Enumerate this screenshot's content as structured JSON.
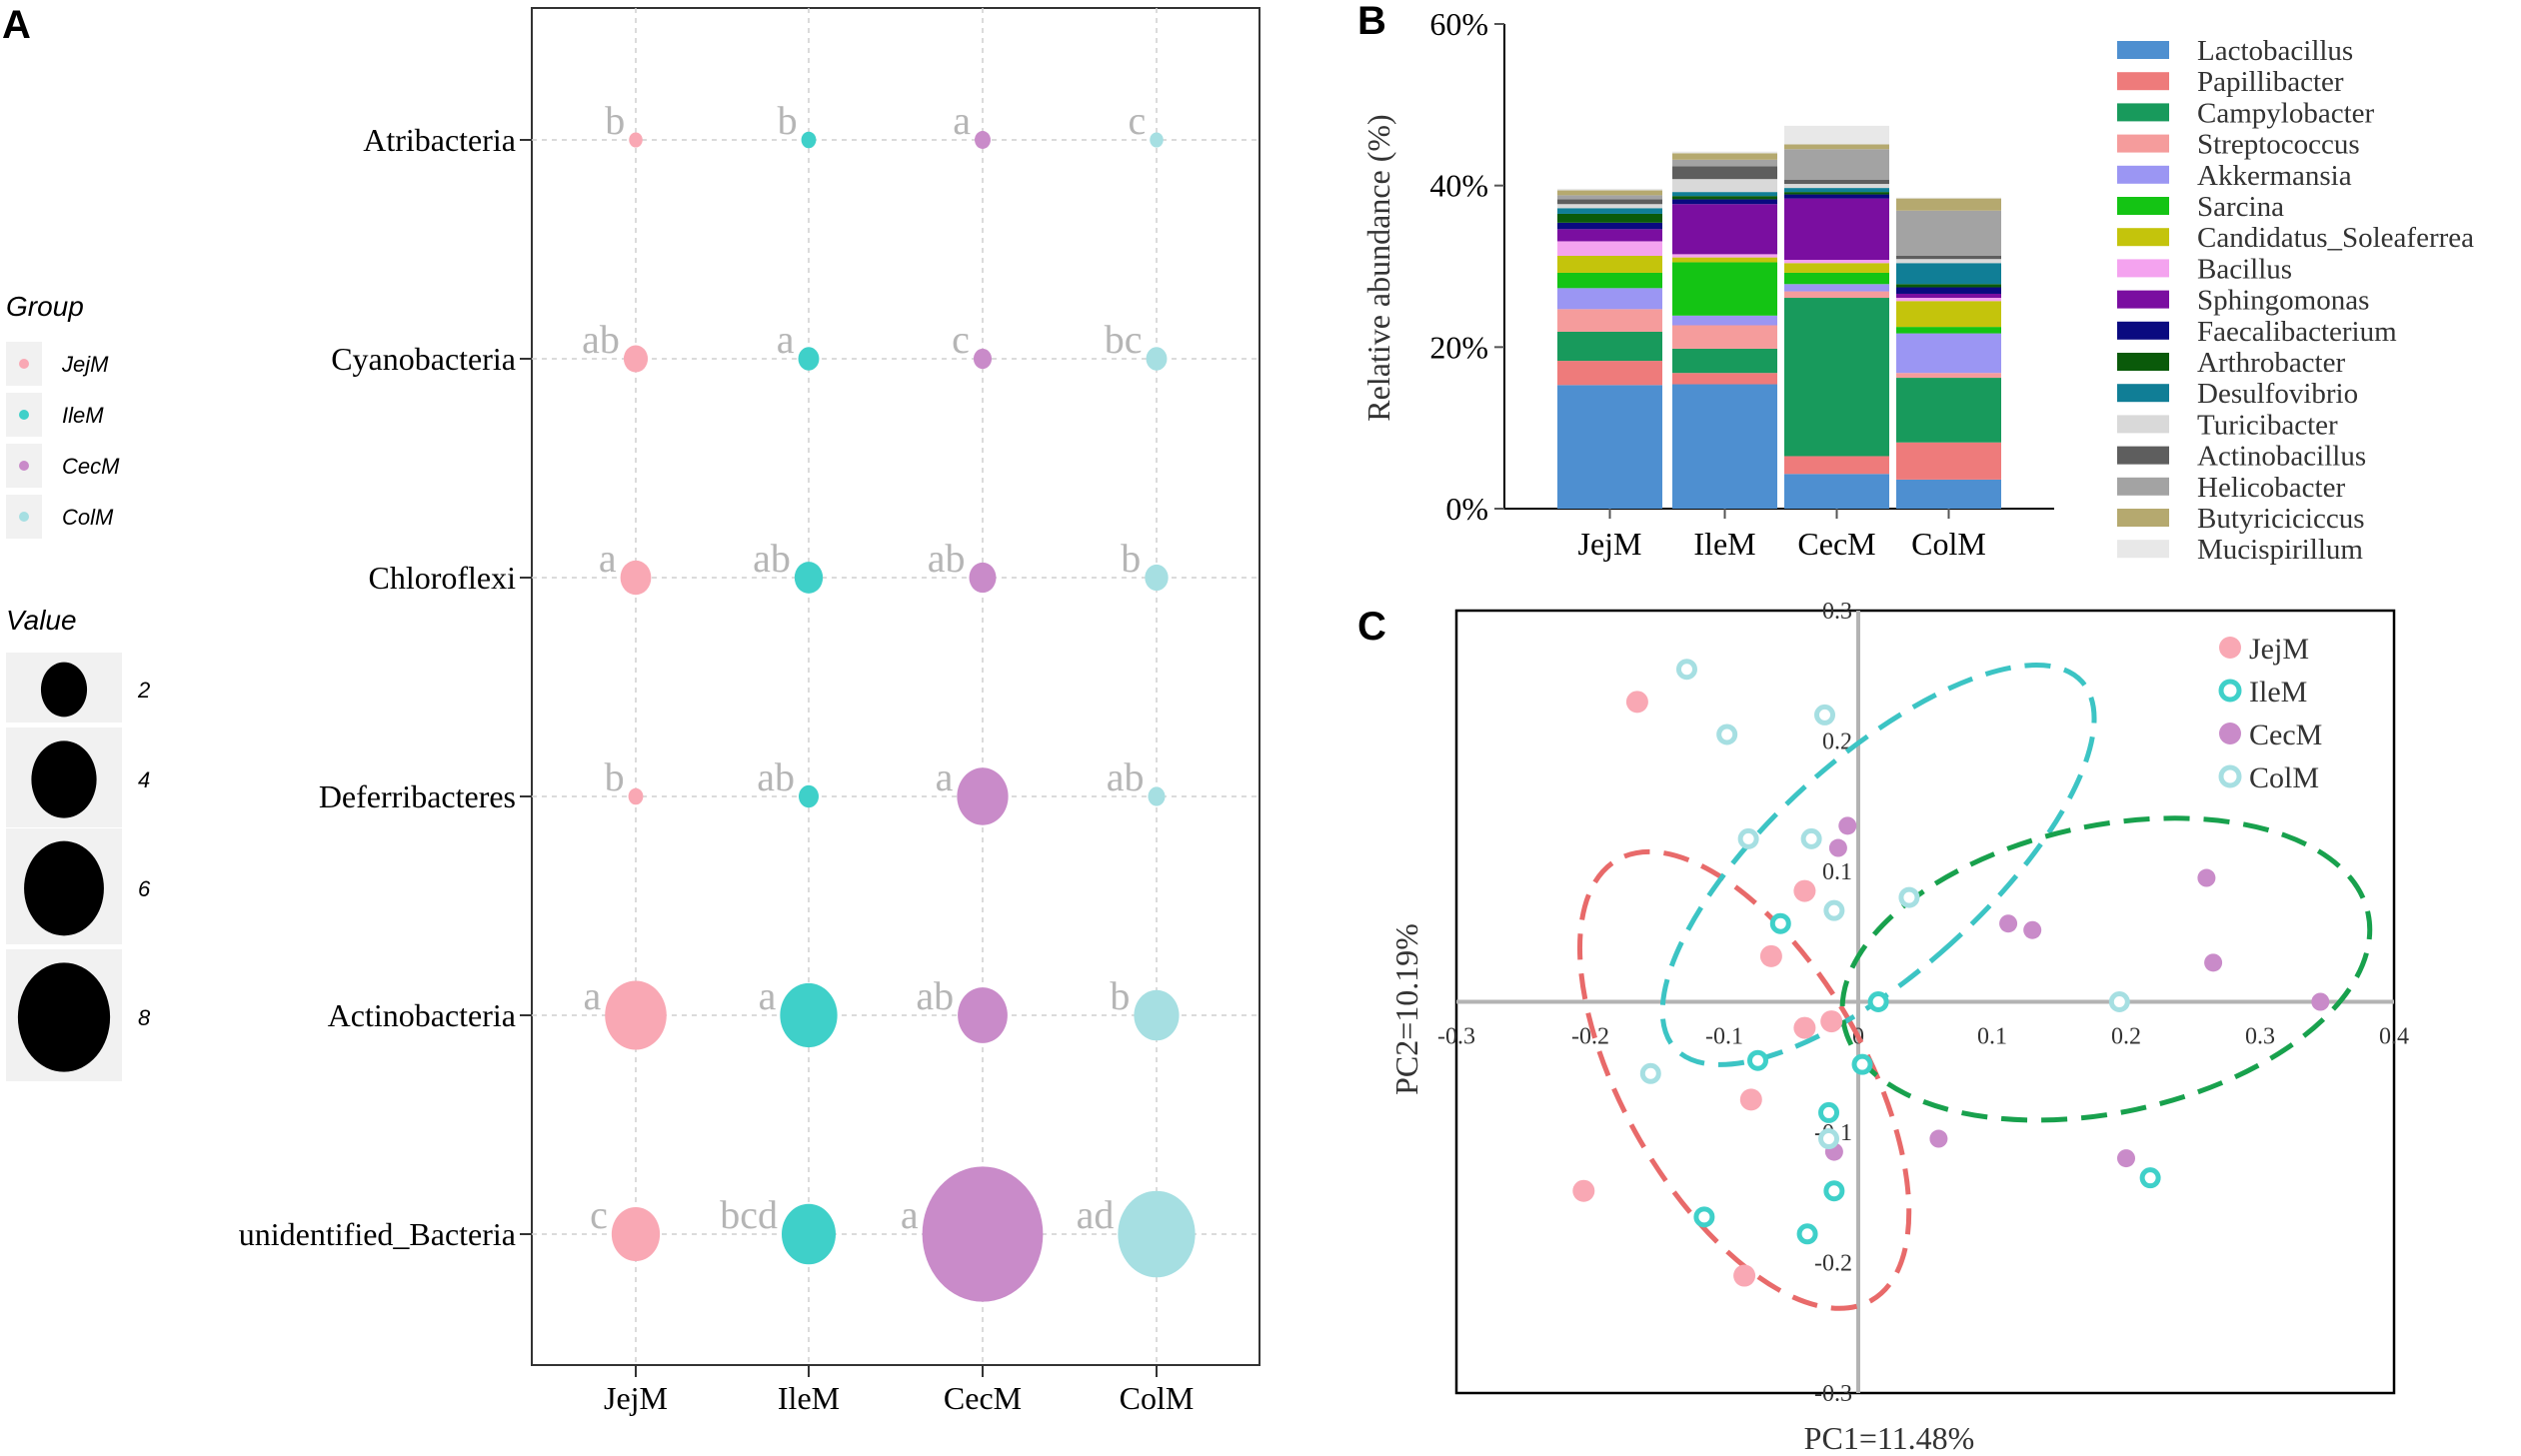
{
  "panels": {
    "a": "A",
    "b": "B",
    "c": "C"
  },
  "colors": {
    "JejM": "#f9a8b4",
    "IleM": "#3fd0c9",
    "CecM": "#c98bc9",
    "ColM": "#a6dfe2"
  },
  "ellipse_colors": {
    "JejM": "#e86a6a",
    "IleM": "#3cc4c4",
    "CecM": "#18a14d"
  },
  "chart_data": [
    {
      "id": "A",
      "type": "scatter",
      "subtype": "bubble",
      "groups": [
        "JejM",
        "IleM",
        "CecM",
        "ColM"
      ],
      "phyla": [
        "Atribacteria",
        "Cyanobacteria",
        "Chloroflexi",
        "Deferribacteres",
        "Actinobacteria",
        "unidentified_Bacteria"
      ],
      "values": [
        [
          0.25,
          0.3,
          0.35,
          0.25
        ],
        [
          0.8,
          0.6,
          0.45,
          0.6
        ],
        [
          1.3,
          1.1,
          1.0,
          0.75
        ],
        [
          0.3,
          0.55,
          3.6,
          0.4
        ],
        [
          5.2,
          4.5,
          3.4,
          2.8
        ],
        [
          3.2,
          4.0,
          20.0,
          8.2
        ]
      ],
      "letters": [
        [
          "b",
          "b",
          "a",
          "c"
        ],
        [
          "ab",
          "a",
          "c",
          "bc"
        ],
        [
          "a",
          "ab",
          "ab",
          "b"
        ],
        [
          "b",
          "ab",
          "a",
          "ab"
        ],
        [
          "a",
          "a",
          "ab",
          "b"
        ],
        [
          "c",
          "bcd",
          "a",
          "ad"
        ]
      ],
      "legend": {
        "group_title": "Group",
        "value_title": "Value",
        "value_breaks": [
          2,
          4,
          6,
          8
        ]
      }
    },
    {
      "id": "B",
      "type": "bar",
      "stacked": true,
      "categories": [
        "JejM",
        "IleM",
        "CecM",
        "ColM"
      ],
      "ylabel": "Relative abundance (%)",
      "ylim": [
        0,
        60
      ],
      "yticks": [
        "0%",
        "20%",
        "40%",
        "60%"
      ],
      "series": [
        {
          "name": "Lactobacillus",
          "color": "#4e8fd0",
          "values": [
            15.3,
            15.4,
            4.3,
            3.6
          ]
        },
        {
          "name": "Papillibacter",
          "color": "#ee7b7b",
          "values": [
            3.0,
            1.4,
            2.2,
            4.6
          ]
        },
        {
          "name": "Campylobacter",
          "color": "#189a5c",
          "values": [
            3.6,
            3.0,
            19.6,
            8.0
          ]
        },
        {
          "name": "Streptococcus",
          "color": "#f59c9c",
          "values": [
            2.8,
            2.9,
            0.8,
            0.6
          ]
        },
        {
          "name": "Akkermansia",
          "color": "#9b96f3",
          "values": [
            2.6,
            1.2,
            0.9,
            4.9
          ]
        },
        {
          "name": "Sarcina",
          "color": "#14c414",
          "values": [
            1.9,
            6.6,
            1.4,
            0.8
          ]
        },
        {
          "name": "Candidatus_Soleaferrea",
          "color": "#c4c40c",
          "values": [
            2.1,
            0.6,
            1.2,
            3.2
          ]
        },
        {
          "name": "Bacillus",
          "color": "#f4a3ef",
          "values": [
            1.8,
            0.4,
            0.4,
            0.4
          ]
        },
        {
          "name": "Sphingomonas",
          "color": "#7a0ea0",
          "values": [
            1.5,
            6.2,
            7.6,
            0.5
          ]
        },
        {
          "name": "Faecalibacterium",
          "color": "#0a0a80",
          "values": [
            0.8,
            0.6,
            0.5,
            0.8
          ]
        },
        {
          "name": "Arthrobacter",
          "color": "#0a5a0a",
          "values": [
            1.1,
            0.4,
            0.3,
            0.4
          ]
        },
        {
          "name": "Desulfovibrio",
          "color": "#107e96",
          "values": [
            0.7,
            0.5,
            0.5,
            2.6
          ]
        },
        {
          "name": "Turicibacter",
          "color": "#d9d9d9",
          "values": [
            0.5,
            1.6,
            0.5,
            0.5
          ]
        },
        {
          "name": "Actinobacillus",
          "color": "#5e5e5e",
          "values": [
            0.6,
            1.6,
            0.5,
            0.4
          ]
        },
        {
          "name": "Helicobacter",
          "color": "#a3a3a3",
          "values": [
            0.5,
            0.8,
            3.8,
            5.6
          ]
        },
        {
          "name": "Butyriciciccus",
          "color": "#b5a96f",
          "values": [
            0.6,
            0.8,
            0.6,
            1.5
          ]
        },
        {
          "name": "Mucispirillum",
          "color": "#e8e8e8",
          "values": [
            0.2,
            0.2,
            2.3,
            0.1
          ]
        }
      ]
    },
    {
      "id": "C",
      "type": "scatter",
      "xlabel": "PC1=11.48%",
      "ylabel": "PC2=10.19%",
      "xlim": [
        -0.3,
        0.4
      ],
      "ylim": [
        -0.3,
        0.3
      ],
      "xticks": [
        "-0.3",
        "-0.2",
        "-0.1",
        "0",
        "0.1",
        "0.2",
        "0.3",
        "0.4"
      ],
      "yticks": [
        "0.3",
        "0.2",
        "0.1",
        "-0.1",
        "-0.2",
        "-0.3"
      ],
      "legend": [
        "JejM",
        "IleM",
        "CecM",
        "ColM"
      ],
      "series": [
        {
          "name": "JejM",
          "marker": "filled",
          "points": [
            [
              -0.165,
              0.23
            ],
            [
              -0.04,
              0.085
            ],
            [
              -0.065,
              0.035
            ],
            [
              -0.04,
              -0.02
            ],
            [
              -0.02,
              -0.015
            ],
            [
              -0.08,
              -0.075
            ],
            [
              -0.205,
              -0.145
            ],
            [
              -0.085,
              -0.21
            ]
          ]
        },
        {
          "name": "IleM",
          "marker": "ring",
          "points": [
            [
              -0.058,
              0.06
            ],
            [
              0.015,
              0.0
            ],
            [
              -0.075,
              -0.045
            ],
            [
              0.003,
              -0.048
            ],
            [
              -0.022,
              -0.085
            ],
            [
              -0.018,
              -0.145
            ],
            [
              -0.115,
              -0.165
            ],
            [
              -0.038,
              -0.178
            ],
            [
              0.218,
              -0.135
            ]
          ]
        },
        {
          "name": "CecM",
          "marker": "filled",
          "points": [
            [
              -0.008,
              0.135
            ],
            [
              -0.015,
              0.118
            ],
            [
              0.112,
              0.06
            ],
            [
              0.13,
              0.055
            ],
            [
              0.26,
              0.095
            ],
            [
              0.265,
              0.03
            ],
            [
              0.345,
              0.0
            ],
            [
              -0.018,
              -0.115
            ],
            [
              0.06,
              -0.105
            ],
            [
              0.2,
              -0.12
            ]
          ]
        },
        {
          "name": "ColM",
          "marker": "ring",
          "points": [
            [
              -0.128,
              0.255
            ],
            [
              -0.098,
              0.205
            ],
            [
              -0.025,
              0.22
            ],
            [
              -0.082,
              0.125
            ],
            [
              -0.035,
              0.125
            ],
            [
              -0.018,
              0.07
            ],
            [
              0.038,
              0.08
            ],
            [
              0.195,
              0.0
            ],
            [
              -0.155,
              -0.055
            ],
            [
              -0.022,
              -0.105
            ]
          ]
        }
      ],
      "ellipses": [
        {
          "group": "JejM",
          "center": [
            -0.085,
            -0.06
          ],
          "semi_axes": [
            0.09,
            0.195
          ],
          "angle_deg": -30
        },
        {
          "group": "IleM",
          "center": [
            0.015,
            0.105
          ],
          "semi_axes": [
            0.08,
            0.21
          ],
          "angle_deg": 48
        },
        {
          "group": "CecM",
          "center": [
            0.185,
            0.025
          ],
          "semi_axes": [
            0.2,
            0.11
          ],
          "angle_deg": -12
        }
      ]
    }
  ]
}
